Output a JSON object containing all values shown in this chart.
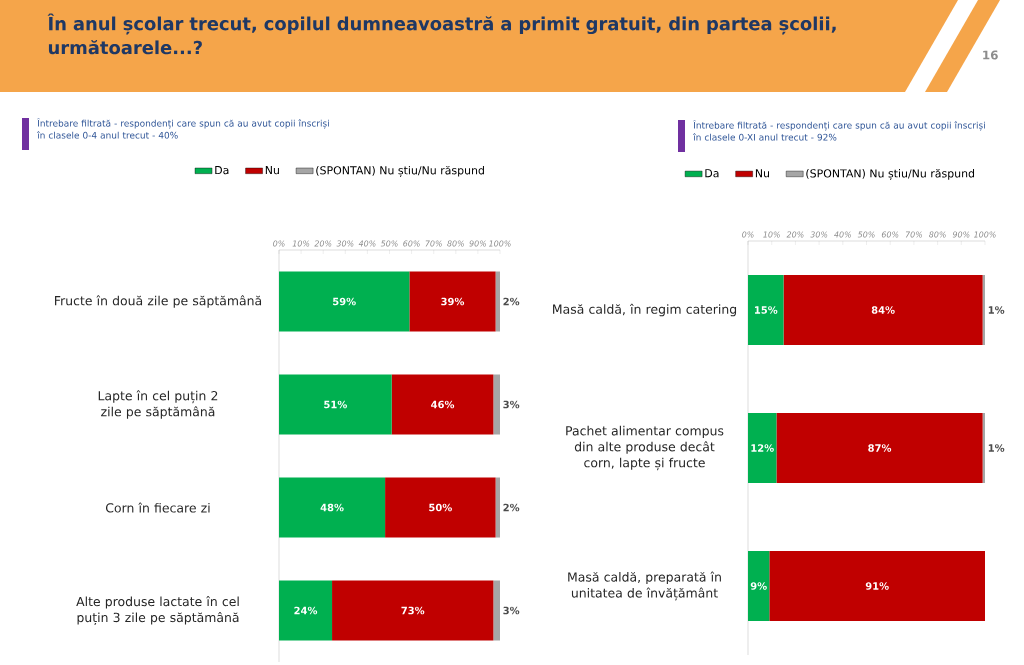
{
  "chart_data": [
    {
      "type": "bar",
      "orientation": "horizontal",
      "stacked": true,
      "title": "În anul școlar trecut, copilul dumneavoastră a primit gratuit, din partea școlii, următoarele...?",
      "subtitle": "Întrebare filtrată - respondenți care spun că au avut copii înscriși în clasele 0-4 anul trecut - 40%",
      "annotations": [
        "16"
      ],
      "categories": [
        "Fructe în două zile pe săptămână",
        "Lapte în cel puțin 2 zile pe săptămână",
        "Corn în fiecare zi",
        "Alte produse lactate în cel puțin 3 zile pe săptămână"
      ],
      "series": [
        {
          "name": "Da",
          "color": "#00b050",
          "values": [
            59,
            51,
            48,
            24
          ],
          "value_labels": [
            "59%",
            "51%",
            "48%",
            "24%"
          ]
        },
        {
          "name": "Nu",
          "color": "#c00000",
          "values": [
            39,
            46,
            50,
            73
          ],
          "value_labels": [
            "39%",
            "46%",
            "50%",
            "73%"
          ]
        },
        {
          "name": "(SPONTAN) Nu știu/Nu răspund",
          "color": "#a6a6a6",
          "values": [
            2,
            3,
            2,
            3
          ],
          "value_labels": [
            "2%",
            "3%",
            "2%",
            "3%"
          ]
        }
      ],
      "xlim": [
        0,
        100
      ],
      "xticks": [
        {
          "value": 0,
          "label": "0%"
        },
        {
          "value": 10,
          "label": "10%"
        },
        {
          "value": 20,
          "label": "20%"
        },
        {
          "value": 30,
          "label": "30%"
        },
        {
          "value": 40,
          "label": "40%"
        },
        {
          "value": 50,
          "label": "50%"
        },
        {
          "value": 60,
          "label": "60%"
        },
        {
          "value": 70,
          "label": "70%"
        },
        {
          "value": 80,
          "label": "80%"
        },
        {
          "value": 90,
          "label": "90%"
        },
        {
          "value": 100,
          "label": "100%"
        }
      ],
      "legend": "top"
    },
    {
      "type": "bar",
      "orientation": "horizontal",
      "stacked": true,
      "subtitle": "Întrebare filtrată - respondenți care spun că au avut copii înscriși în clasele 0-XI anul trecut - 92%",
      "categories": [
        "Masă caldă, în regim catering",
        "Pachet alimentar compus din alte produse decât corn, lapte și fructe",
        "Masă caldă, preparată în unitatea de învățământ"
      ],
      "series": [
        {
          "name": "Da",
          "color": "#00b050",
          "values": [
            15,
            12,
            9
          ],
          "value_labels": [
            "15%",
            "12%",
            "9%"
          ]
        },
        {
          "name": "Nu",
          "color": "#c00000",
          "values": [
            84,
            87,
            91
          ],
          "value_labels": [
            "84%",
            "87%",
            "91%"
          ]
        },
        {
          "name": "(SPONTAN) Nu știu/Nu răspund",
          "color": "#a6a6a6",
          "values": [
            1,
            1,
            null
          ],
          "value_labels": [
            "1%",
            "1%",
            null
          ]
        }
      ],
      "xlim": [
        0,
        100
      ],
      "xticks": [
        {
          "value": 0,
          "label": "0%"
        },
        {
          "value": 10,
          "label": "10%"
        },
        {
          "value": 20,
          "label": "20%"
        },
        {
          "value": 30,
          "label": "30%"
        },
        {
          "value": 40,
          "label": "40%"
        },
        {
          "value": 50,
          "label": "50%"
        },
        {
          "value": 60,
          "label": "60%"
        },
        {
          "value": 70,
          "label": "70%"
        },
        {
          "value": 80,
          "label": "80%"
        },
        {
          "value": 90,
          "label": "90%"
        },
        {
          "value": 100,
          "label": "100%"
        }
      ],
      "legend": "top"
    }
  ]
}
